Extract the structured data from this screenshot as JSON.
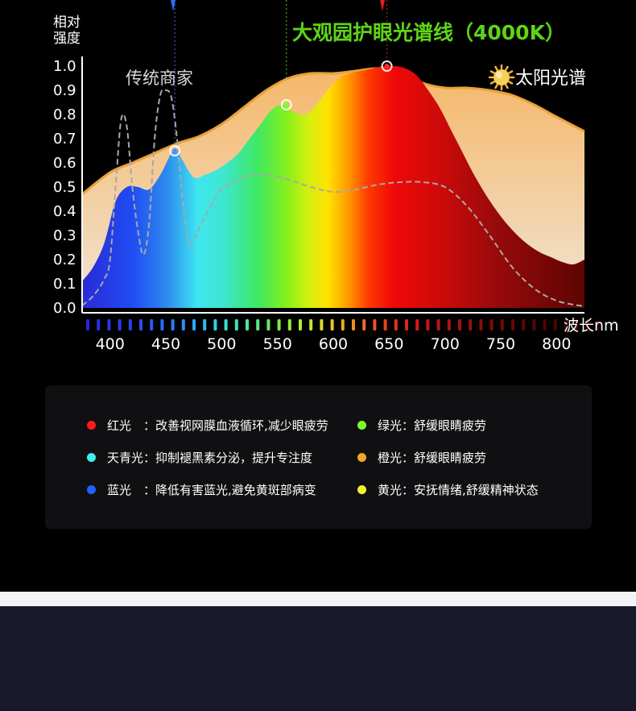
{
  "chart_data": {
    "type": "area",
    "title": "大观园护眼光谱线（4000K）",
    "ylabel": "相对强度",
    "xlabel_unit": "波长nm",
    "x_ticks": [
      400,
      450,
      500,
      550,
      600,
      650,
      700,
      750,
      800
    ],
    "y_ticks": [
      "1.0",
      "0.9",
      "0.8",
      "0.7",
      "0.6",
      "0.5",
      "0.4",
      "0.3",
      "0.2",
      "0.1",
      "0.0"
    ],
    "xlim": [
      375,
      825
    ],
    "ylim": [
      0,
      1.0
    ],
    "series": [
      {
        "name": "太阳光谱",
        "color": "#f2c882",
        "x": [
          375,
          400,
          420,
          440,
          460,
          480,
          500,
          520,
          540,
          560,
          580,
          600,
          620,
          640,
          660,
          680,
          700,
          720,
          740,
          760,
          780,
          800,
          825
        ],
        "y": [
          0.47,
          0.56,
          0.6,
          0.64,
          0.68,
          0.71,
          0.76,
          0.83,
          0.9,
          0.95,
          0.97,
          0.97,
          0.98,
          0.99,
          0.97,
          0.93,
          0.91,
          0.91,
          0.9,
          0.88,
          0.84,
          0.79,
          0.73
        ]
      },
      {
        "name": "大观园护眼光谱线（4000K）",
        "x": [
          375,
          385,
          395,
          405,
          415,
          425,
          435,
          445,
          455,
          460,
          465,
          475,
          485,
          495,
          505,
          515,
          525,
          535,
          545,
          555,
          565,
          575,
          585,
          595,
          605,
          615,
          625,
          635,
          645,
          655,
          665,
          675,
          685,
          695,
          705,
          715,
          725,
          735,
          745,
          755,
          765,
          775,
          785,
          795,
          805,
          815,
          825
        ],
        "y": [
          0.11,
          0.17,
          0.27,
          0.44,
          0.5,
          0.5,
          0.49,
          0.55,
          0.64,
          0.65,
          0.61,
          0.54,
          0.55,
          0.57,
          0.6,
          0.64,
          0.7,
          0.76,
          0.82,
          0.84,
          0.81,
          0.8,
          0.84,
          0.9,
          0.95,
          0.97,
          0.98,
          0.99,
          1.0,
          1.0,
          0.99,
          0.96,
          0.9,
          0.83,
          0.74,
          0.65,
          0.56,
          0.48,
          0.41,
          0.35,
          0.3,
          0.26,
          0.23,
          0.21,
          0.19,
          0.18,
          0.2
        ]
      },
      {
        "name": "传统商家",
        "x": [
          375,
          385,
          395,
          400,
          405,
          410,
          415,
          420,
          425,
          430,
          435,
          440,
          445,
          450,
          455,
          460,
          465,
          470,
          475,
          480,
          490,
          500,
          520,
          540,
          560,
          580,
          600,
          620,
          640,
          660,
          680,
          700,
          720,
          740,
          760,
          780,
          800,
          820,
          825
        ],
        "y": [
          0.01,
          0.05,
          0.12,
          0.2,
          0.5,
          0.78,
          0.75,
          0.5,
          0.32,
          0.22,
          0.35,
          0.7,
          0.88,
          0.9,
          0.87,
          0.7,
          0.45,
          0.27,
          0.28,
          0.33,
          0.42,
          0.49,
          0.54,
          0.55,
          0.53,
          0.5,
          0.48,
          0.49,
          0.51,
          0.52,
          0.52,
          0.5,
          0.42,
          0.3,
          0.17,
          0.08,
          0.03,
          0.01,
          0.01
        ]
      }
    ],
    "markers": [
      {
        "x": 458,
        "y": 0.65,
        "color": "#5a8cff"
      },
      {
        "x": 558,
        "y": 0.84,
        "color": "#7aff3a"
      },
      {
        "x": 648,
        "y": 1.0,
        "color": "#ff2a2a"
      }
    ],
    "annotations": {
      "traditional_label": "传统商家",
      "sun_label": "太阳光谱"
    },
    "bar_colors": [
      "#2d22d8",
      "#2c2fe0",
      "#2b36e6",
      "#2a3ce8",
      "#2a44ec",
      "#2b50ee",
      "#2b5cf0",
      "#2b6af2",
      "#2b7cf4",
      "#2c90f4",
      "#2fa8f2",
      "#32bcef",
      "#36cdea",
      "#3adbd8",
      "#3fe2be",
      "#48e6a0",
      "#58e880",
      "#6cea60",
      "#82ea48",
      "#9aea3a",
      "#b2e834",
      "#c8e232",
      "#dcd830",
      "#e8c42c",
      "#eca828",
      "#ee8c24",
      "#ee6e22",
      "#ec5420",
      "#e8401e",
      "#e2301c",
      "#dc241a",
      "#d21c18",
      "#c61816",
      "#ba1614",
      "#ae1412",
      "#a21210",
      "#96100e",
      "#8a0e0c",
      "#7e0c0a",
      "#720a08",
      "#680808",
      "#5e0606",
      "#560606",
      "#500505",
      "#4a0505",
      "#440404",
      "#3e0404",
      "#380303",
      "#320303"
    ]
  },
  "legend": [
    {
      "label": "红光　：改善视网膜血液循环,减少眼疲劳",
      "color": "#ff1b1b"
    },
    {
      "label": "绿光：舒缓眼睛疲劳",
      "color": "#7aff2a"
    },
    {
      "label": "天青光：抑制褪黑素分泌，提升专注度",
      "color": "#3ff0f0"
    },
    {
      "label": "橙光：舒缓眼睛疲劳",
      "color": "#f5a623"
    },
    {
      "label": "蓝光　：降低有害蓝光,避免黄斑部病变",
      "color": "#1f63ff"
    },
    {
      "label": "黄光：安抚情绪,舒缓精神状态",
      "color": "#f2f22a"
    }
  ]
}
